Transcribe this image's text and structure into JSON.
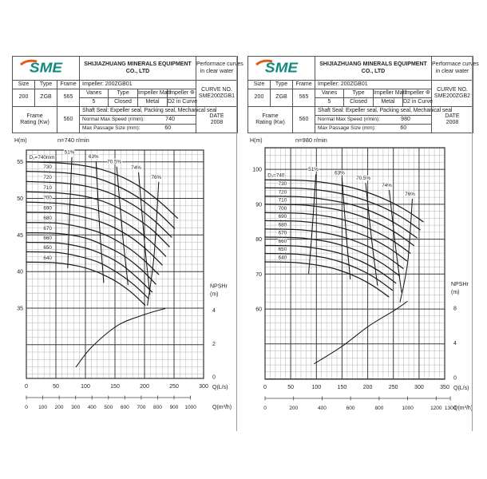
{
  "header": {
    "logo": "SME",
    "company": [
      "SHIJIAZHUANG MINERALS EQUIPMENT",
      "CO., LTD"
    ],
    "note": [
      "Performace curves",
      "in clear water"
    ],
    "labels": {
      "size": "Size",
      "type": "Type",
      "frame": "Frame",
      "impeller": "Impeller: 200ZGB01",
      "vanes": "Vanes",
      "vane_type": "Type",
      "impeller_matl": "Impeller Mat'l",
      "impeller_phi": "Impeller Φ",
      "shaft_seal": "Shaft Seal: Expeller seal, Packing seal, Mechanical seal",
      "frame_rating": [
        "Frame",
        "Rating (Kw)"
      ],
      "normal_max_speed": "Normal Max Speed (r/min):",
      "max_passage": "Max Passage Size (mm):",
      "curve_no": "CURVE NO.",
      "date": "DATE"
    },
    "values": {
      "size": "200",
      "type": "ZGB",
      "frame": "565",
      "vanes": "5",
      "vane_type": "Closed",
      "impeller_matl": "Metal",
      "impeller_phi": "D2 in Curve",
      "frame_rating": "560",
      "max_passage": "60",
      "date": "2008"
    }
  },
  "left": {
    "curve_no": "SME200ZGB1",
    "speed": "740"
  },
  "right": {
    "curve_no": "SME200ZGB2",
    "speed": "980"
  },
  "chart_data": [
    {
      "type": "line",
      "title": "n=740 r/min",
      "ylabel": "H(m)",
      "axes": {
        "q": {
          "max": 300,
          "major": 50,
          "minor": 10,
          "unit": "Q(L/s)",
          "tick_labels": [
            0,
            50,
            100,
            150,
            200,
            250,
            300
          ]
        },
        "h": {
          "top": 56.6,
          "bottom": 25.4,
          "major": 5,
          "minor": 1,
          "ticks": [
            55,
            50,
            45,
            40,
            35
          ]
        },
        "npsh": {
          "label": "NPSHr",
          "unit": "(m)",
          "ticks": [
            4,
            2,
            0
          ],
          "zero_h": 25.6,
          "unit_h": 2.28
        },
        "q2": {
          "unit": "Q(m³/h)",
          "labels": [
            0,
            100,
            200,
            300,
            400,
            500,
            600,
            700,
            800,
            900,
            1000
          ]
        }
      },
      "diameter_curves": [
        {
          "label": "D₂=740mm",
          "points": [
            [
              0,
              55
            ],
            [
              64,
              54.8
            ],
            [
              115,
              54.2
            ],
            [
              154,
              53.2
            ],
            [
              192,
              51.6
            ],
            [
              225,
              49.6
            ],
            [
              256,
              47.3
            ]
          ]
        },
        {
          "label": "730",
          "points": [
            [
              0,
              53.7
            ],
            [
              63,
              53.5
            ],
            [
              113,
              52.9
            ],
            [
              151,
              51.8
            ],
            [
              188,
              50.2
            ],
            [
              221,
              48.2
            ],
            [
              251,
              45.9
            ]
          ]
        },
        {
          "label": "720",
          "points": [
            [
              0,
              52.3
            ],
            [
              62,
              52.1
            ],
            [
              111,
              51.5
            ],
            [
              148,
              50.5
            ],
            [
              185,
              48.9
            ],
            [
              216,
              47.0
            ],
            [
              246,
              44.7
            ]
          ]
        },
        {
          "label": "710",
          "points": [
            [
              0,
              50.9
            ],
            [
              61,
              50.7
            ],
            [
              109,
              50.1
            ],
            [
              145,
              49.1
            ],
            [
              182,
              47.5
            ],
            [
              213,
              45.7
            ],
            [
              242,
              43.4
            ]
          ]
        },
        {
          "label": "700",
          "points": [
            [
              0,
              49.5
            ],
            [
              59,
              49.3
            ],
            [
              106,
              48.7
            ],
            [
              142,
              47.7
            ],
            [
              177,
              46.2
            ],
            [
              208,
              44.3
            ],
            [
              236,
              42.1
            ]
          ]
        },
        {
          "label": "690",
          "points": [
            [
              0,
              48.1
            ],
            [
              58,
              48.0
            ],
            [
              104,
              47.3
            ],
            [
              138,
              46.4
            ],
            [
              173,
              44.9
            ],
            [
              202,
              43.1
            ],
            [
              230,
              40.9
            ]
          ]
        },
        {
          "label": "680",
          "points": [
            [
              0,
              46.7
            ],
            [
              56,
              46.6
            ],
            [
              101,
              45.9
            ],
            [
              134,
              45.0
            ],
            [
              168,
              43.5
            ],
            [
              197,
              41.7
            ],
            [
              224,
              39.6
            ]
          ]
        },
        {
          "label": "670",
          "points": [
            [
              0,
              45.3
            ],
            [
              55,
              45.2
            ],
            [
              99,
              44.6
            ],
            [
              131,
              43.6
            ],
            [
              164,
              42.2
            ],
            [
              193,
              40.4
            ],
            [
              219,
              38.3
            ]
          ]
        },
        {
          "label": "660",
          "points": [
            [
              0,
              44.0
            ],
            [
              53,
              43.9
            ],
            [
              96,
              43.3
            ],
            [
              128,
              42.4
            ],
            [
              160,
              41.0
            ],
            [
              187,
              39.2
            ],
            [
              213,
              37.2
            ]
          ]
        },
        {
          "label": "650",
          "points": [
            [
              0,
              42.7
            ],
            [
              52,
              42.6
            ],
            [
              93,
              42.0
            ],
            [
              124,
              41.2
            ],
            [
              155,
              39.8
            ],
            [
              182,
              38.2
            ],
            [
              207,
              36.3
            ]
          ]
        },
        {
          "label": "640",
          "points": [
            [
              0,
              41.3
            ],
            [
              50,
              41.2
            ],
            [
              90,
              40.7
            ],
            [
              121,
              39.9
            ],
            [
              151,
              38.7
            ],
            [
              177,
              37.2
            ],
            [
              201,
              35.4
            ]
          ]
        }
      ],
      "efficiency_lines": [
        {
          "label": "51%",
          "points": [
            [
              77,
              55.6
            ],
            [
              73,
              47.5
            ],
            [
              70,
              40.5
            ]
          ]
        },
        {
          "label": "63%",
          "points": [
            [
              118,
              55.0
            ],
            [
              124,
              46.0
            ],
            [
              131,
              38.5
            ]
          ]
        },
        {
          "label": "70.5%",
          "points": [
            [
              153,
              54.3
            ],
            [
              163,
              45.0
            ],
            [
              172,
              38.2
            ]
          ]
        },
        {
          "label": "74%",
          "points": [
            [
              190,
              53.5
            ],
            [
              200,
              44.0
            ],
            [
              209,
              36.9
            ]
          ]
        },
        {
          "label": "76%",
          "points": [
            [
              224,
              52.2
            ],
            [
              216,
              42.0
            ],
            [
              205,
              35.4
            ]
          ]
        }
      ],
      "npsh_curve": {
        "points": [
          [
            84,
            0.6
          ],
          [
            111,
            1.8
          ],
          [
            155,
            3.1
          ],
          [
            201,
            3.75
          ],
          [
            235,
            4.1
          ]
        ]
      }
    },
    {
      "type": "line",
      "title": "n=980 r/min",
      "ylabel": "H(m)",
      "axes": {
        "q": {
          "max": 350,
          "major": 50,
          "minor": 10,
          "unit": "Q(L/s)",
          "tick_labels": [
            0,
            50,
            100,
            150,
            200,
            250,
            300,
            350
          ]
        },
        "h": {
          "top": 106.2,
          "bottom": 39.9,
          "major": 10,
          "minor": 2,
          "ticks": [
            100,
            90,
            80,
            70,
            60
          ]
        },
        "npsh": {
          "label": "NPSHr",
          "unit": "(m)",
          "ticks": [
            8,
            4,
            0
          ],
          "zero_h": 40.4,
          "unit_h": 2.475
        },
        "q2": {
          "unit": "Q(m³/h)",
          "labels": [
            0,
            200,
            400,
            600,
            800,
            1000,
            1200,
            1300
          ]
        }
      },
      "diameter_curves": [
        {
          "label": "D₂=740",
          "points": [
            [
              0,
              97
            ],
            [
              77,
              96.8
            ],
            [
              139,
              95.7
            ],
            [
              185,
              94.1
            ],
            [
              231,
              91.6
            ],
            [
              271,
              88.6
            ],
            [
              308,
              85
            ]
          ]
        },
        {
          "label": "730",
          "points": [
            [
              0,
              94.7
            ],
            [
              76,
              94.5
            ],
            [
              136,
              93.4
            ],
            [
              181,
              91.8
            ],
            [
              227,
              89.3
            ],
            [
              266,
              86.3
            ],
            [
              302,
              82.7
            ]
          ]
        },
        {
          "label": "720",
          "points": [
            [
              0,
              92.3
            ],
            [
              74,
              92.1
            ],
            [
              133,
              91.0
            ],
            [
              178,
              89.5
            ],
            [
              222,
              87.0
            ],
            [
              260,
              84.0
            ],
            [
              296,
              80.4
            ]
          ]
        },
        {
          "label": "710",
          "points": [
            [
              0,
              90.0
            ],
            [
              73,
              89.8
            ],
            [
              131,
              88.7
            ],
            [
              174,
              87.2
            ],
            [
              218,
              84.7
            ],
            [
              255,
              81.8
            ],
            [
              290,
              78.2
            ]
          ]
        },
        {
          "label": "700",
          "points": [
            [
              0,
              87.6
            ],
            [
              71,
              87.4
            ],
            [
              127,
              86.4
            ],
            [
              170,
              84.8
            ],
            [
              212,
              82.4
            ],
            [
              249,
              79.5
            ],
            [
              283,
              76.0
            ]
          ]
        },
        {
          "label": "690",
          "points": [
            [
              0,
              85.3
            ],
            [
              69,
              85.1
            ],
            [
              124,
              84.1
            ],
            [
              166,
              82.5
            ],
            [
              207,
              80.2
            ],
            [
              243,
              77.3
            ],
            [
              276,
              73.8
            ]
          ]
        },
        {
          "label": "680",
          "points": [
            [
              0,
              82.9
            ],
            [
              67,
              82.7
            ],
            [
              121,
              81.7
            ],
            [
              161,
              80.2
            ],
            [
              202,
              77.8
            ],
            [
              237,
              75.0
            ],
            [
              269,
              71.6
            ]
          ]
        },
        {
          "label": "670",
          "points": [
            [
              0,
              80.6
            ],
            [
              66,
              80.4
            ],
            [
              118,
              79.4
            ],
            [
              157,
              77.9
            ],
            [
              197,
              75.6
            ],
            [
              231,
              72.8
            ],
            [
              262,
              69.5
            ]
          ]
        },
        {
          "label": "660",
          "points": [
            [
              0,
              78.2
            ],
            [
              64,
              78.0
            ],
            [
              115,
              77.0
            ],
            [
              153,
              75.6
            ],
            [
              191,
              73.4
            ],
            [
              224,
              70.7
            ],
            [
              255,
              67.4
            ]
          ]
        },
        {
          "label": "650",
          "points": [
            [
              0,
              75.9
            ],
            [
              62,
              75.7
            ],
            [
              112,
              74.8
            ],
            [
              149,
              73.4
            ],
            [
              186,
              71.2
            ],
            [
              218,
              68.6
            ],
            [
              248,
              65.4
            ]
          ]
        },
        {
          "label": "640",
          "points": [
            [
              0,
              73.5
            ],
            [
              60,
              73.3
            ],
            [
              108,
              72.4
            ],
            [
              145,
              71.1
            ],
            [
              181,
              69.0
            ],
            [
              212,
              66.5
            ],
            [
              241,
              63.5
            ]
          ]
        }
      ],
      "efficiency_lines": [
        {
          "label": "51%",
          "points": [
            [
              99,
              98.5
            ],
            [
              92,
              83.0
            ],
            [
              85,
              70.2
            ]
          ]
        },
        {
          "label": "63%",
          "points": [
            [
              150,
              97.5
            ],
            [
              158,
              81.5
            ],
            [
              166,
              68.6
            ]
          ]
        },
        {
          "label": "70.5%",
          "points": [
            [
              196,
              96.0
            ],
            [
              208,
              79.5
            ],
            [
              219,
              66.8
            ]
          ]
        },
        {
          "label": "74%",
          "points": [
            [
              242,
              94.0
            ],
            [
              255,
              77.0
            ],
            [
              266,
              64.8
            ]
          ]
        },
        {
          "label": "76%",
          "points": [
            [
              287,
              91.5
            ],
            [
              278,
              73.5
            ],
            [
              263,
              62.0
            ]
          ]
        }
      ],
      "npsh_curve": {
        "points": [
          [
            96,
            1.6
          ],
          [
            150,
            3.6
          ],
          [
            201,
            5.9
          ],
          [
            253,
            7.8
          ],
          [
            277,
            8.8
          ]
        ]
      }
    }
  ],
  "colors": {
    "logo_teal": "#0e8b7c",
    "logo_orange": "#e05a1a"
  }
}
